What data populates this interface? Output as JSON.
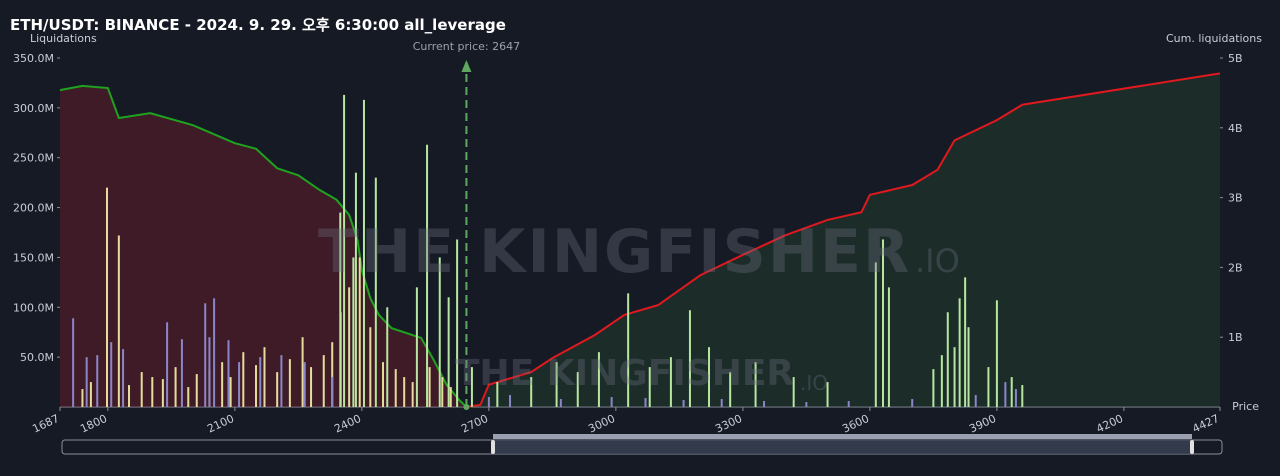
{
  "chart_data": {
    "type": "liquidation",
    "title": "ETH/USDT: BINANCE - 2024. 9. 29. 오후 6:30:00 all_leverage",
    "ylabel": "Liquidations",
    "y2label": "Cum. liquidations",
    "xlabel": "Price",
    "annotation": "Current price: 2647",
    "current_price": 2647,
    "watermark": "THE KINGFISHER",
    "watermark_suffix": ".IO",
    "xlim": [
      1687,
      4427
    ],
    "xticks": [
      1687,
      1800,
      2100,
      2400,
      2700,
      3000,
      3300,
      3600,
      3900,
      4200,
      4427
    ],
    "ylim": [
      0,
      350
    ],
    "yticks": [
      {
        "value": 50,
        "label": "50.0M"
      },
      {
        "value": 100,
        "label": "100.0M"
      },
      {
        "value": 150,
        "label": "150.0M"
      },
      {
        "value": 200,
        "label": "200.0M"
      },
      {
        "value": 250,
        "label": "250.0M"
      },
      {
        "value": 300,
        "label": "300.0M"
      },
      {
        "value": 350,
        "label": "350.0M"
      }
    ],
    "y2lim": [
      0,
      5
    ],
    "y2ticks": [
      {
        "value": 1,
        "label": "1B"
      },
      {
        "value": 2,
        "label": "2B"
      },
      {
        "value": 3,
        "label": "3B"
      },
      {
        "value": 4,
        "label": "4B"
      },
      {
        "value": 5,
        "label": "5B"
      }
    ],
    "series": [
      {
        "kind": "bar",
        "color": "#e6dd9c",
        "x": [
          1740,
          1760,
          1798,
          1826,
          1850,
          1880,
          1905,
          1930,
          1960,
          1990,
          2010,
          2040,
          2070,
          2090,
          2120,
          2150,
          2170,
          2200,
          2230,
          2260,
          2280,
          2310,
          2330,
          2350,
          2370,
          2395,
          2420,
          2450,
          2480,
          2500,
          2520,
          2560,
          2590,
          2610
        ],
        "values": [
          18,
          25,
          220,
          172,
          22,
          35,
          30,
          28,
          40,
          20,
          33,
          38,
          45,
          30,
          55,
          42,
          60,
          35,
          48,
          70,
          40,
          52,
          65,
          95,
          120,
          150,
          80,
          45,
          38,
          30,
          25,
          40,
          30,
          20
        ]
      },
      {
        "kind": "bar",
        "color": "#b7e6a0",
        "x": [
          2349,
          2358,
          2380,
          2386,
          2405,
          2433,
          2460,
          2530,
          2554,
          2584,
          2605,
          2625,
          2660,
          2720,
          2800,
          2860,
          2910,
          2960,
          3029,
          3080,
          3130,
          3175,
          3220,
          3270,
          3330,
          3420,
          3500,
          3614,
          3631,
          3645,
          3750,
          3770,
          3784,
          3800,
          3812,
          3825,
          3833,
          3880,
          3900,
          3935,
          3960
        ],
        "values": [
          195,
          313,
          150,
          235,
          308,
          230,
          100,
          120,
          263,
          150,
          110,
          168,
          40,
          25,
          30,
          45,
          35,
          55,
          114,
          40,
          50,
          97,
          60,
          35,
          45,
          30,
          25,
          145,
          168,
          120,
          38,
          52,
          95,
          60,
          109,
          130,
          80,
          40,
          107,
          30,
          22
        ]
      },
      {
        "kind": "bar",
        "color": "#8a86c8",
        "x": [
          1718,
          1750,
          1775,
          1808,
          1836,
          1940,
          1975,
          2030,
          2040,
          2051,
          2085,
          2110,
          2160,
          2210,
          2265,
          2330,
          2700,
          2750,
          2870,
          2990,
          3070,
          3160,
          3250,
          3350,
          3450,
          3550,
          3700,
          3850,
          3920,
          3945
        ],
        "values": [
          89,
          50,
          52,
          65,
          58,
          85,
          68,
          104,
          70,
          109,
          67,
          45,
          50,
          52,
          45,
          30,
          10,
          12,
          8,
          10,
          9,
          7,
          8,
          6,
          5,
          6,
          8,
          12,
          25,
          18
        ]
      },
      {
        "kind": "line",
        "axis": "y2",
        "color": "#1fa31f",
        "fill": "rgba(110,28,40,0.45)",
        "x": [
          1687,
          1740,
          1800,
          1826,
          1900,
          2000,
          2100,
          2150,
          2200,
          2250,
          2300,
          2340,
          2370,
          2390,
          2400,
          2420,
          2440,
          2470,
          2540,
          2570,
          2600,
          2630,
          2647
        ],
        "values": [
          4.54,
          4.6,
          4.57,
          4.14,
          4.21,
          4.04,
          3.78,
          3.7,
          3.42,
          3.32,
          3.11,
          2.97,
          2.75,
          2.39,
          1.96,
          1.56,
          1.32,
          1.13,
          0.99,
          0.67,
          0.32,
          0.1,
          0
        ]
      },
      {
        "kind": "line",
        "axis": "y2",
        "color": "#e0191f",
        "fill": "rgba(40,80,50,0.35)",
        "x": [
          2647,
          2680,
          2700,
          2800,
          2850,
          2950,
          3020,
          3100,
          3200,
          3300,
          3400,
          3500,
          3580,
          3600,
          3700,
          3760,
          3800,
          3900,
          3960,
          4427
        ],
        "values": [
          0,
          0.03,
          0.32,
          0.5,
          0.7,
          1.03,
          1.32,
          1.46,
          1.89,
          2.18,
          2.46,
          2.68,
          2.79,
          3.04,
          3.18,
          3.4,
          3.82,
          4.11,
          4.33,
          4.78
        ]
      }
    ]
  }
}
